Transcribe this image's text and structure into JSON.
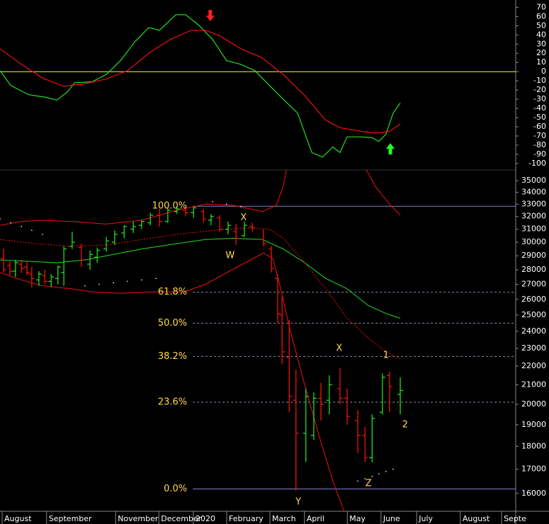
{
  "chart_data": [
    {
      "type": "line",
      "xlim": [
        0,
        13
      ],
      "ylim": [
        -107,
        78
      ],
      "yticks": [
        70,
        60,
        50,
        40,
        30,
        20,
        10,
        0,
        -10,
        -20,
        -30,
        -40,
        -50,
        -60,
        -70,
        -80,
        -90,
        -100
      ],
      "reference_lines": [
        {
          "value": 0,
          "color": "#ffff00"
        }
      ],
      "series": [
        {
          "color": "#22dd22",
          "x": [
            0,
            0.27,
            0.71,
            1.16,
            1.43,
            1.7,
            1.88,
            2.32,
            2.68,
            3.04,
            3.39,
            3.75,
            4.02,
            4.43,
            4.68,
            5,
            5.36,
            5.71,
            6.07,
            6.43,
            6.79,
            7.14,
            7.5,
            7.86,
            8.13,
            8.39,
            8.57,
            8.75,
            9.11,
            9.38,
            9.55,
            9.73,
            9.91,
            10.09
          ],
          "values": [
            1,
            -15,
            -25,
            -28,
            -31,
            -22,
            -12,
            -11,
            -3,
            12,
            32,
            48,
            45,
            62,
            62,
            51,
            35,
            12,
            8,
            1,
            -15,
            -30,
            -45,
            -88,
            -93,
            -82,
            -88,
            -71,
            -71,
            -72,
            -76,
            -68,
            -45,
            -34
          ]
        },
        {
          "color": "#ee1111",
          "x": [
            0,
            0.54,
            1.07,
            1.61,
            2.14,
            2.68,
            3.21,
            3.75,
            4.29,
            4.82,
            5.18,
            5.54,
            6.07,
            6.61,
            7.14,
            7.68,
            8.21,
            8.57,
            9.11,
            9.46,
            9.82,
            10.09
          ],
          "values": [
            25,
            8,
            -7,
            -16,
            -13,
            -8,
            1,
            20,
            35,
            45,
            45,
            39,
            25,
            15,
            -3,
            -26,
            -53,
            -61,
            -65,
            -67,
            -65,
            -57
          ]
        }
      ],
      "markers": [
        {
          "x": 5.3,
          "y": 61,
          "direction": "down",
          "color": "#ff2020"
        },
        {
          "x": 9.84,
          "y": -84,
          "direction": "up",
          "color": "#22ff22"
        }
      ]
    },
    {
      "type": "ohlc",
      "log_scale": true,
      "xlim": [
        0,
        13
      ],
      "ylim": [
        15300,
        35950
      ],
      "yticks": [
        35000,
        34000,
        33000,
        32000,
        31000,
        30000,
        29000,
        28000,
        27000,
        26000,
        25000,
        24000,
        23000,
        22000,
        21000,
        20000,
        19000,
        18000,
        17000,
        16000
      ],
      "xticks": [
        {
          "value": 0.09,
          "label": "August"
        },
        {
          "value": 1.21,
          "label": "September"
        },
        {
          "value": 2.95,
          "label": "November"
        },
        {
          "value": 4.04,
          "label": "December"
        },
        {
          "value": 4.91,
          "label": "2020"
        },
        {
          "value": 5.75,
          "label": "February"
        },
        {
          "value": 6.84,
          "label": "March"
        },
        {
          "value": 7.71,
          "label": "April"
        },
        {
          "value": 8.79,
          "label": "May"
        },
        {
          "value": 9.64,
          "label": "June"
        },
        {
          "value": 10.54,
          "label": "July"
        },
        {
          "value": 11.64,
          "label": "August"
        },
        {
          "value": 12.68,
          "label": "Septe"
        }
      ],
      "up_color": "#22dd22",
      "down_color": "#ee1111",
      "x": [
        0.09,
        0.25,
        0.39,
        0.54,
        0.68,
        0.8,
        0.98,
        1.13,
        1.29,
        1.46,
        1.61,
        1.82,
        2.05,
        2.27,
        2.45,
        2.68,
        2.89,
        3.13,
        3.36,
        3.57,
        3.79,
        4.02,
        4.23,
        4.46,
        4.68,
        4.88,
        5.13,
        5.32,
        5.54,
        5.75,
        5.95,
        6.16,
        6.36,
        6.64,
        6.84,
        7,
        7.11,
        7.29,
        7.46,
        7.71,
        7.91,
        8.09,
        8.3,
        8.57,
        8.75,
        9.02,
        9.2,
        9.38,
        9.64,
        9.82,
        10.09
      ],
      "open": [
        28800,
        28300,
        27900,
        28400,
        28200,
        27700,
        27300,
        27600,
        27200,
        27400,
        27800,
        29700,
        29600,
        28400,
        28900,
        29500,
        30000,
        30700,
        31000,
        31300,
        31500,
        32100,
        31600,
        32400,
        32500,
        32300,
        32400,
        31700,
        31900,
        31000,
        30800,
        30500,
        31200,
        30200,
        29500,
        27400,
        25000,
        22500,
        20200,
        18600,
        18500,
        20300,
        20200,
        20800,
        20300,
        19200,
        18500,
        17500,
        19600,
        21500,
        20500
      ],
      "high": [
        29500,
        28600,
        28700,
        28700,
        28600,
        28200,
        27900,
        28000,
        27700,
        28300,
        29700,
        30800,
        29900,
        29400,
        29600,
        30400,
        30900,
        31300,
        31600,
        31700,
        32300,
        32600,
        32700,
        32800,
        32800,
        32800,
        32600,
        32200,
        32100,
        31600,
        31400,
        31600,
        31500,
        31000,
        29700,
        27700,
        26200,
        24700,
        21800,
        20800,
        20600,
        21100,
        21500,
        21900,
        20800,
        19700,
        18900,
        19500,
        21600,
        21700,
        21400
      ],
      "low": [
        27800,
        27600,
        27500,
        27800,
        27600,
        26800,
        26900,
        27000,
        26800,
        27000,
        26900,
        29500,
        28200,
        28000,
        28500,
        29300,
        29800,
        30300,
        30700,
        31000,
        31300,
        31200,
        31500,
        32200,
        32000,
        31900,
        31500,
        31300,
        30800,
        30600,
        29800,
        30400,
        30800,
        29700,
        27800,
        24500,
        22100,
        19600,
        16100,
        17300,
        18300,
        19200,
        19500,
        20000,
        19000,
        17700,
        17300,
        17300,
        19500,
        19600,
        19500
      ],
      "close": [
        28000,
        27900,
        28500,
        28100,
        27800,
        27400,
        27700,
        27200,
        27500,
        28200,
        29500,
        30000,
        28700,
        29100,
        29400,
        30100,
        30600,
        31200,
        31200,
        31600,
        32100,
        31600,
        32500,
        32600,
        32300,
        32700,
        31800,
        32000,
        31000,
        31300,
        30300,
        31300,
        31100,
        29900,
        28100,
        25100,
        22800,
        20400,
        18600,
        20400,
        20300,
        20000,
        21000,
        20300,
        19400,
        18500,
        17500,
        19300,
        21400,
        20900,
        20700
      ],
      "overlays": [
        {
          "color": "#ee1111",
          "dashed": false,
          "x": [
            0,
            0.54,
            1.07,
            1.79,
            2.68,
            3.57,
            4.46,
            5.18,
            5.89,
            6.61,
            6.96,
            7.14,
            7.23,
            8.2,
            9.2,
            9.46,
            9.82,
            10.09
          ],
          "values": [
            31300,
            31600,
            31700,
            31600,
            31400,
            31700,
            32500,
            33000,
            32900,
            32400,
            32900,
            34500,
            36200,
            null,
            36200,
            34500,
            33000,
            32100
          ]
        },
        {
          "color": "#22dd22",
          "dashed": false,
          "x": [
            0,
            0.71,
            1.43,
            2.14,
            2.86,
            3.57,
            4.46,
            5.18,
            5.89,
            6.61,
            7.14,
            7.68,
            8.21,
            8.75,
            9.29,
            9.73,
            10.09
          ],
          "values": [
            28700,
            28600,
            28500,
            28700,
            29100,
            29500,
            29900,
            30200,
            30300,
            30200,
            29500,
            28500,
            27400,
            26700,
            25600,
            25100,
            24800
          ]
        },
        {
          "color": "#ee1111",
          "dashed": false,
          "x": [
            0,
            0.54,
            1.07,
            1.79,
            2.32,
            3.04,
            3.93,
            4.64,
            5.18,
            5.71,
            6.25,
            6.64,
            6.88,
            7.05,
            7.32,
            7.68,
            8.04,
            8.39,
            8.75
          ],
          "values": [
            27800,
            27300,
            26900,
            26700,
            26500,
            26400,
            26500,
            26500,
            27000,
            27800,
            28600,
            29200,
            28800,
            27000,
            24000,
            21000,
            18500,
            16500,
            15000
          ]
        },
        {
          "color": "#ee1111",
          "dashed": true,
          "x": [
            0,
            0.89,
            1.79,
            2.68,
            3.57,
            4.46,
            5.36,
            6.25,
            6.79,
            7.14,
            7.68,
            8.21,
            8.75,
            9.29,
            9.73,
            10.09
          ],
          "values": [
            30200,
            29900,
            29700,
            29800,
            30200,
            30600,
            30900,
            31100,
            31000,
            30300,
            28500,
            26700,
            24800,
            23600,
            22800,
            22400
          ]
        }
      ],
      "dots": {
        "color": "#dddddd",
        "x": [
          0,
          0.27,
          0.54,
          0.8,
          1.07,
          2.14,
          2.5,
          2.86,
          3.21,
          3.57,
          3.93,
          5.36,
          5.71,
          6.07,
          9.02,
          9.2,
          9.38,
          9.55,
          9.73,
          9.91
        ],
        "values": [
          31800,
          31500,
          31200,
          30900,
          30600,
          26900,
          27000,
          27100,
          27200,
          27300,
          27400,
          33200,
          33000,
          32800,
          16500,
          16600,
          16700,
          16800,
          16900,
          17000
        ]
      },
      "fib_start_x": 4.86,
      "fib_levels": [
        {
          "label": "100.0%",
          "value": 32830,
          "dashed": false
        },
        {
          "label": "61.8%",
          "value": 26470,
          "dashed": true
        },
        {
          "label": "50.0%",
          "value": 24500,
          "dashed": true
        },
        {
          "label": "38.2%",
          "value": 22540,
          "dashed": true
        },
        {
          "label": "23.6%",
          "value": 20100,
          "dashed": true
        },
        {
          "label": "0.0%",
          "value": 16180,
          "dashed": false
        }
      ],
      "annotations": [
        {
          "text": "X",
          "x": 6.14,
          "y": 31900
        },
        {
          "text": "W",
          "x": 5.8,
          "y": 29000
        },
        {
          "text": "X",
          "x": 8.55,
          "y": 23000
        },
        {
          "text": "1",
          "x": 9.73,
          "y": 22600
        },
        {
          "text": "Y",
          "x": 7.52,
          "y": 15650
        },
        {
          "text": "Z",
          "x": 9.29,
          "y": 16400
        },
        {
          "text": "2",
          "x": 10.21,
          "y": 19000
        }
      ]
    }
  ]
}
